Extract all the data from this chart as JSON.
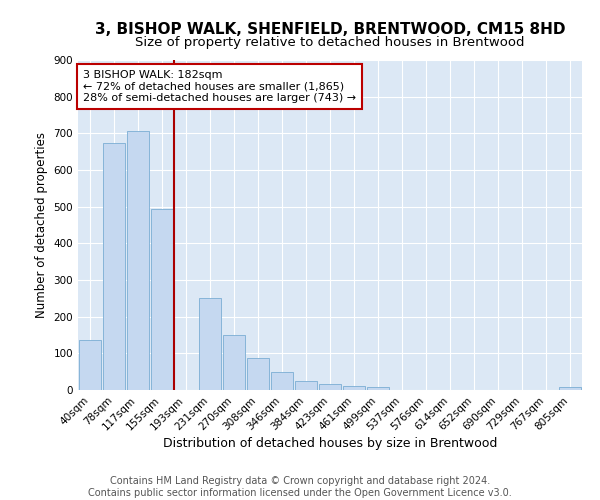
{
  "title": "3, BISHOP WALK, SHENFIELD, BRENTWOOD, CM15 8HD",
  "subtitle": "Size of property relative to detached houses in Brentwood",
  "xlabel": "Distribution of detached houses by size in Brentwood",
  "ylabel": "Number of detached properties",
  "categories": [
    "40sqm",
    "78sqm",
    "117sqm",
    "155sqm",
    "193sqm",
    "231sqm",
    "270sqm",
    "308sqm",
    "346sqm",
    "384sqm",
    "423sqm",
    "461sqm",
    "499sqm",
    "537sqm",
    "576sqm",
    "614sqm",
    "652sqm",
    "690sqm",
    "729sqm",
    "767sqm",
    "805sqm"
  ],
  "values": [
    137,
    675,
    707,
    495,
    0,
    252,
    150,
    87,
    50,
    25,
    17,
    10,
    7,
    0,
    0,
    0,
    0,
    0,
    0,
    0,
    7
  ],
  "bar_color": "#c5d8f0",
  "bar_edge_color": "#7aadd4",
  "vline_color": "#aa0000",
  "vline_position": 3.5,
  "annotation_text": "3 BISHOP WALK: 182sqm\n← 72% of detached houses are smaller (1,865)\n28% of semi-detached houses are larger (743) →",
  "annotation_box_color": "#ffffff",
  "annotation_box_edge_color": "#bb0000",
  "ylim": [
    0,
    900
  ],
  "yticks": [
    0,
    100,
    200,
    300,
    400,
    500,
    600,
    700,
    800,
    900
  ],
  "background_color": "#dce8f5",
  "grid_color": "#ffffff",
  "title_fontsize": 11,
  "subtitle_fontsize": 9.5,
  "xlabel_fontsize": 9,
  "ylabel_fontsize": 8.5,
  "tick_fontsize": 7.5,
  "annotation_fontsize": 8,
  "footer_fontsize": 7,
  "footer_text": "Contains HM Land Registry data © Crown copyright and database right 2024.\nContains public sector information licensed under the Open Government Licence v3.0."
}
